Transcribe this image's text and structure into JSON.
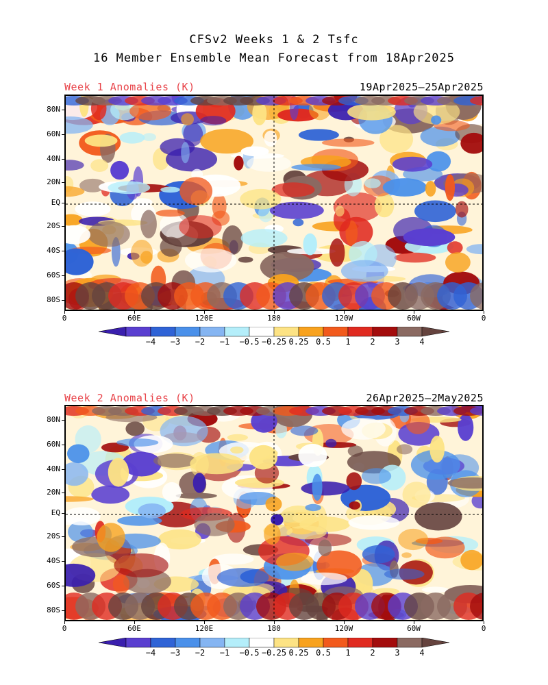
{
  "title": {
    "line1": "CFSv2 Weeks 1 & 2 Tsfc",
    "line2": "16 Member Ensemble Mean Forecast from 18Apr2025"
  },
  "panels": [
    {
      "label": "Week 1 Anomalies (K)",
      "dates": "19Apr2025–25Apr2025"
    },
    {
      "label": "Week 2 Anomalies (K)",
      "dates": "26Apr2025—2May2025"
    }
  ],
  "lat_labels": [
    "80N",
    "60N",
    "40N",
    "20N",
    "EQ",
    "20S",
    "40S",
    "60S",
    "80S"
  ],
  "lon_labels": [
    "0",
    "60E",
    "120E",
    "180",
    "120W",
    "60W",
    "0"
  ],
  "colorbar": {
    "labels": [
      "−4",
      "−3",
      "−2",
      "−1",
      "−0.5",
      "−0.25",
      "0.25",
      "0.5",
      "1",
      "2",
      "3",
      "4"
    ],
    "colors": [
      "#3a1fae",
      "#5a3fd0",
      "#2f63d6",
      "#4a90ea",
      "#85b5f2",
      "#b4eefa",
      "#ffffff",
      "#fde384",
      "#f8a21e",
      "#f25a1c",
      "#e02a20",
      "#a30c0c",
      "#8b6a62",
      "#65433e"
    ]
  }
}
